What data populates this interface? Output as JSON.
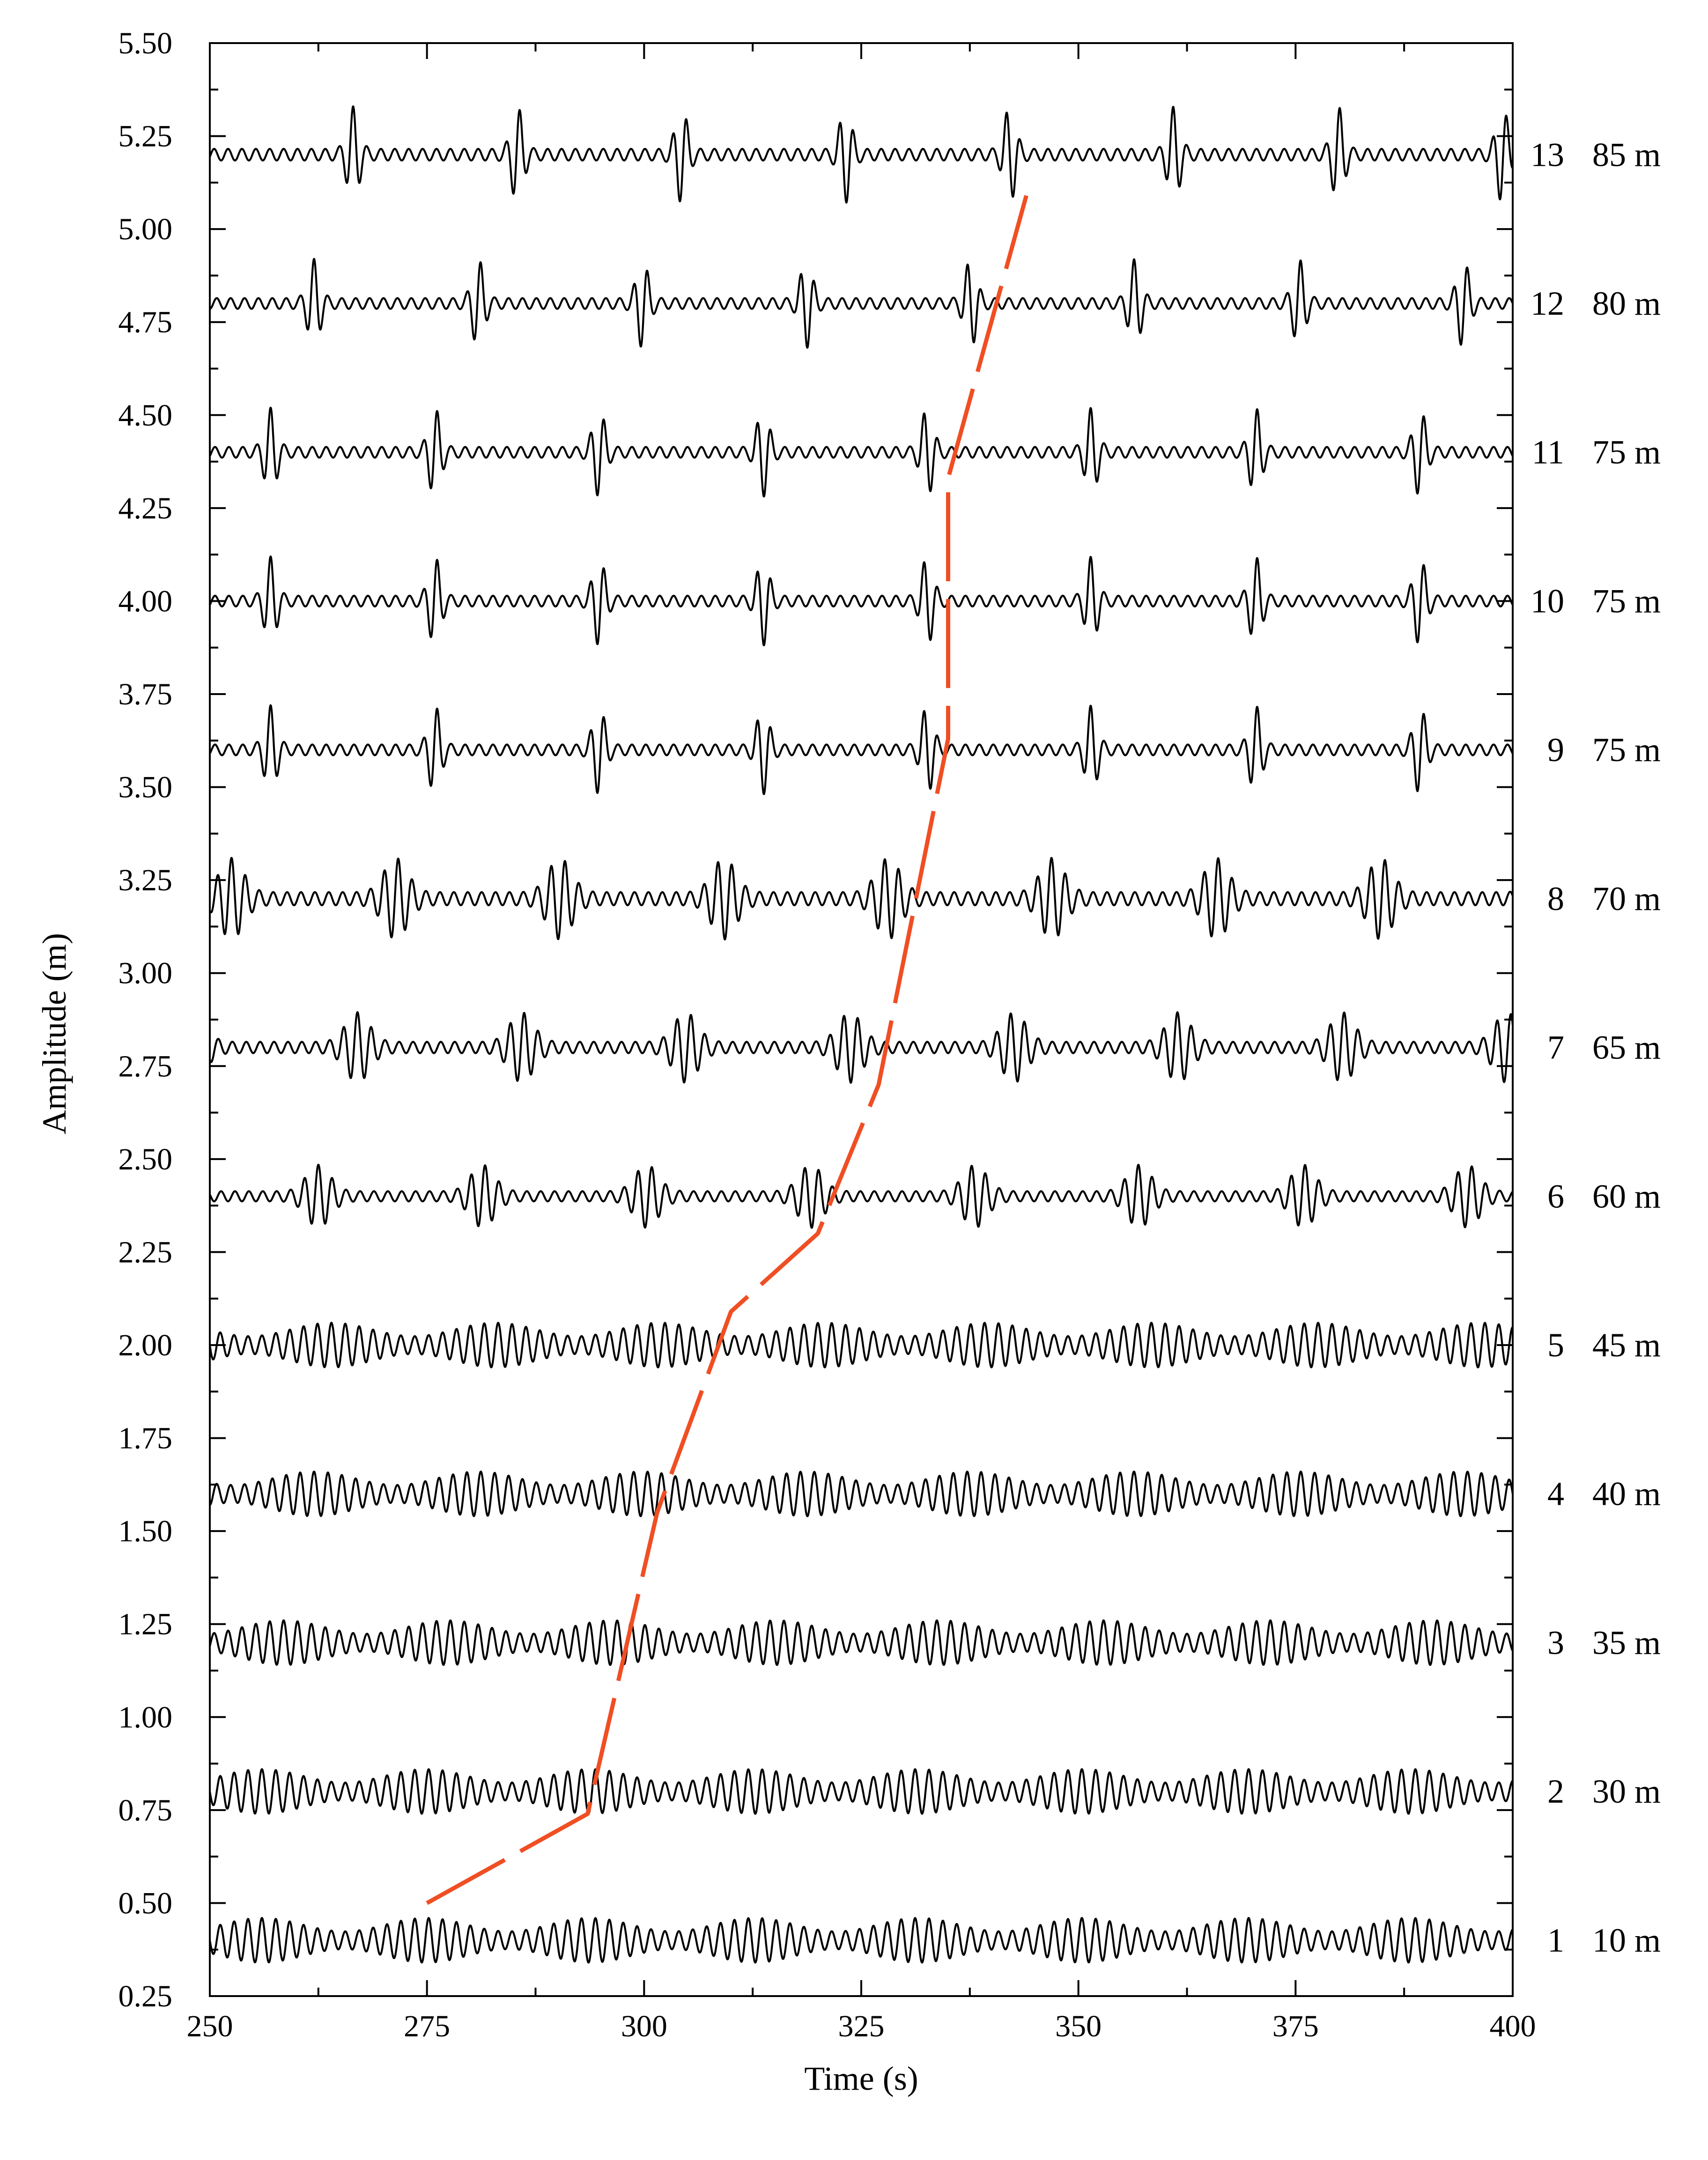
{
  "chart_data": {
    "type": "line",
    "title": "",
    "xlabel": "Time (s)",
    "ylabel": "Amplitude (m)",
    "xlim": [
      250,
      400
    ],
    "ylim": [
      0.25,
      5.5
    ],
    "x_ticks": [
      250,
      275,
      300,
      325,
      350,
      375,
      400
    ],
    "x_tick_labels": [
      "250",
      "275",
      "300",
      "325",
      "350",
      "375",
      "400"
    ],
    "y_ticks": [
      0.25,
      0.5,
      0.75,
      1.0,
      1.25,
      1.5,
      1.75,
      2.0,
      2.25,
      2.5,
      2.75,
      3.0,
      3.25,
      3.5,
      3.75,
      4.0,
      4.25,
      4.5,
      4.75,
      5.0,
      5.25,
      5.5
    ],
    "y_tick_labels": [
      "0.25",
      "0.50",
      "0.75",
      "1.00",
      "1.25",
      "1.50",
      "1.75",
      "2.00",
      "2.25",
      "2.50",
      "2.75",
      "3.00",
      "3.25",
      "3.50",
      "3.75",
      "4.00",
      "4.25",
      "4.50",
      "4.75",
      "5.00",
      "5.25",
      "5.50"
    ],
    "grid": false,
    "wave_period_s": 1.6,
    "group_period_s": 18.9,
    "series": [
      {
        "gauge": "1",
        "distance": "10 m",
        "offset": 0.4,
        "half_amplitude": 0.06,
        "first_group_time": 256.0,
        "group_shape": "smooth"
      },
      {
        "gauge": "2",
        "distance": "30 m",
        "offset": 0.8,
        "half_amplitude": 0.06,
        "first_group_time": 256.0,
        "group_shape": "smooth"
      },
      {
        "gauge": "3",
        "distance": "35 m",
        "offset": 1.2,
        "half_amplitude": 0.06,
        "first_group_time": 258.5,
        "group_shape": "smooth"
      },
      {
        "gauge": "4",
        "distance": "40 m",
        "offset": 1.6,
        "half_amplitude": 0.06,
        "first_group_time": 262.0,
        "group_shape": "smooth"
      },
      {
        "gauge": "5",
        "distance": "45 m",
        "offset": 2.0,
        "half_amplitude": 0.06,
        "first_group_time": 264.0,
        "group_shape": "smooth"
      },
      {
        "gauge": "6",
        "distance": "60 m",
        "offset": 2.4,
        "half_amplitude": 0.085,
        "first_group_time": 262.5,
        "group_shape": "focused"
      },
      {
        "gauge": "7",
        "distance": "65 m",
        "offset": 2.8,
        "half_amplitude": 0.095,
        "first_group_time": 267.0,
        "group_shape": "focused"
      },
      {
        "gauge": "8",
        "distance": "70 m",
        "offset": 3.2,
        "half_amplitude": 0.11,
        "first_group_time": 252.5,
        "group_shape": "focused"
      },
      {
        "gauge": "9",
        "distance": "75 m",
        "offset": 3.6,
        "half_amplitude": 0.12,
        "first_group_time": 257.0,
        "group_shape": "peaked"
      },
      {
        "gauge": "10",
        "distance": "75 m",
        "offset": 4.0,
        "half_amplitude": 0.12,
        "first_group_time": 257.0,
        "group_shape": "peaked"
      },
      {
        "gauge": "11",
        "distance": "75 m",
        "offset": 4.4,
        "half_amplitude": 0.12,
        "first_group_time": 257.0,
        "group_shape": "peaked"
      },
      {
        "gauge": "12",
        "distance": "80 m",
        "offset": 4.8,
        "half_amplitude": 0.12,
        "first_group_time": 262.0,
        "group_shape": "peaked"
      },
      {
        "gauge": "13",
        "distance": "85 m",
        "offset": 5.2,
        "half_amplitude": 0.13,
        "first_group_time": 266.5,
        "group_shape": "peaked"
      }
    ],
    "trace_line": {
      "color": "#f04e23",
      "style": "dashed",
      "points": [
        [
          275,
          0.5
        ],
        [
          293.5,
          0.74
        ],
        [
          301.5,
          1.55
        ],
        [
          310,
          2.09
        ],
        [
          320,
          2.3
        ],
        [
          327,
          2.7
        ],
        [
          335,
          3.63
        ],
        [
          335,
          4.33
        ],
        [
          344,
          5.09
        ]
      ]
    }
  }
}
